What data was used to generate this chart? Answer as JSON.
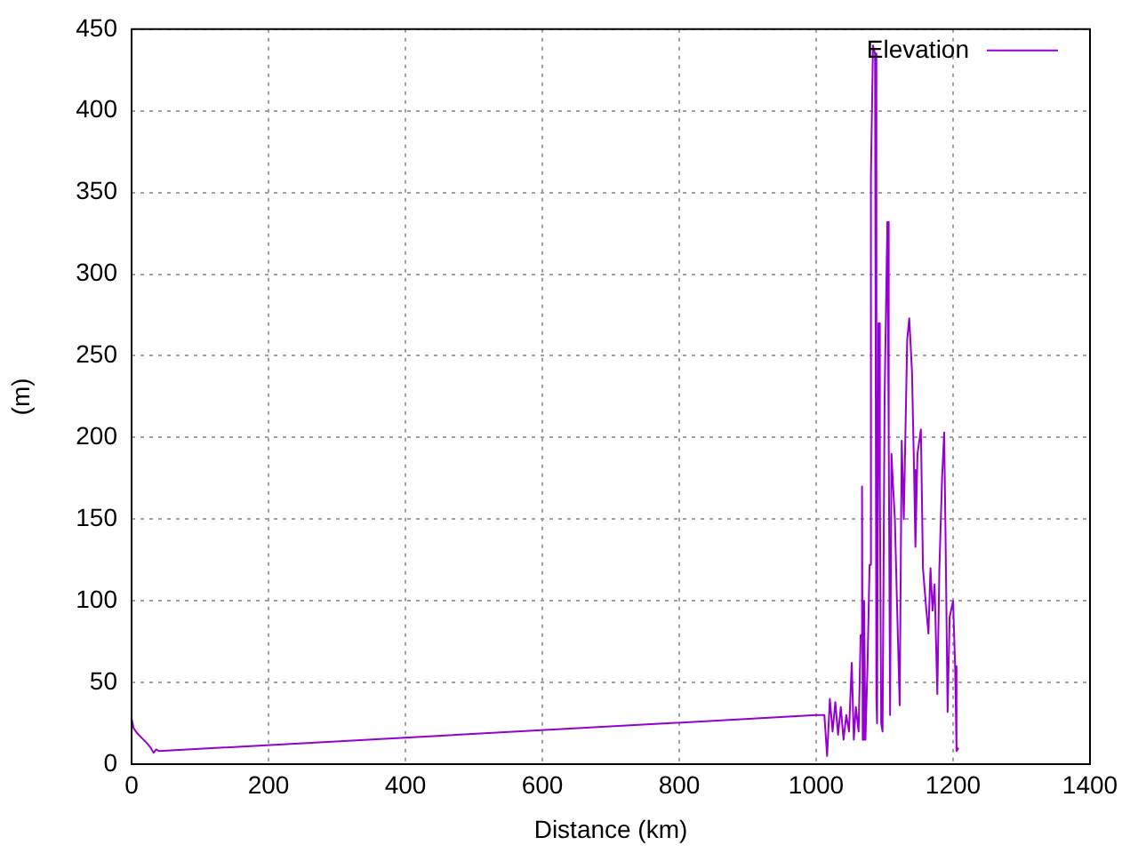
{
  "chart_data": {
    "type": "line",
    "xlabel": "Distance (km)",
    "ylabel": "(m)",
    "xlim": [
      0,
      1400
    ],
    "xticks": [
      0,
      200,
      400,
      600,
      800,
      1000,
      1200,
      1400
    ],
    "ylim": [
      0,
      450
    ],
    "yticks": [
      0,
      50,
      100,
      150,
      200,
      250,
      300,
      350,
      400,
      450
    ],
    "grid": true,
    "legend": "top right",
    "marker": "none",
    "line_style": "solid",
    "series": [
      {
        "name": "Elevation",
        "color": "#9400d3",
        "x": [
          0,
          3,
          8,
          15,
          22,
          28,
          32,
          36,
          40,
          1000,
          1012,
          1016,
          1020,
          1024,
          1028,
          1032,
          1036,
          1040,
          1044,
          1048,
          1052,
          1055,
          1058,
          1062,
          1065,
          1067,
          1068,
          1070,
          1072,
          1075,
          1078,
          1080,
          1083,
          1086,
          1088,
          1089,
          1091,
          1093,
          1095,
          1097,
          1100,
          1104,
          1106,
          1108,
          1110,
          1112,
          1115,
          1118,
          1122,
          1125,
          1128,
          1133,
          1136,
          1140,
          1143,
          1145,
          1148,
          1153,
          1156,
          1161,
          1164,
          1167,
          1170,
          1173,
          1177,
          1180,
          1184,
          1187,
          1189,
          1192,
          1195,
          1200,
          1203,
          1205,
          1208
        ],
        "values": [
          28,
          22,
          19,
          16,
          13,
          10,
          7,
          9,
          8,
          30,
          30,
          5,
          40,
          20,
          38,
          18,
          35,
          15,
          30,
          20,
          62,
          15,
          35,
          20,
          79,
          170,
          15,
          100,
          15,
          60,
          122,
          360,
          440,
          435,
          40,
          25,
          270,
          170,
          25,
          20,
          225,
          332,
          200,
          30,
          190,
          173,
          150,
          100,
          36,
          198,
          150,
          260,
          273,
          240,
          180,
          133,
          190,
          205,
          120,
          94,
          80,
          120,
          94,
          110,
          43,
          120,
          176,
          203,
          140,
          32,
          90,
          100,
          60,
          8,
          10
        ]
      }
    ]
  }
}
